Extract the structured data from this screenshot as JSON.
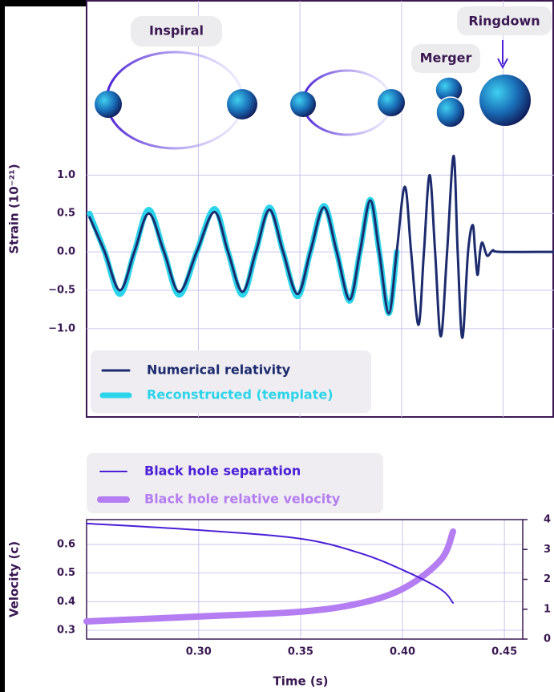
{
  "chart_data": [
    {
      "type": "line",
      "ylabel": "Strain (10⁻²¹)",
      "annotations": [
        "Inspiral",
        "Merger",
        "Ringdown"
      ],
      "xlim": [
        0.245,
        0.475
      ],
      "ylim": [
        -2.15,
        3.27
      ],
      "xticks": [
        0.3,
        0.35,
        0.4,
        0.45
      ],
      "show_xtick_labels": false,
      "yticks": [
        {
          "value": -1,
          "label": "−1.0"
        },
        {
          "value": -0.5,
          "label": "−0.5"
        },
        {
          "value": 0,
          "label": "0.0"
        },
        {
          "value": 0.5,
          "label": "0.5"
        },
        {
          "value": 1,
          "label": "1.0"
        }
      ],
      "grid": true,
      "smooth": true,
      "x": [
        0.2465,
        0.2539,
        0.2614,
        0.2685,
        0.2756,
        0.2831,
        0.2906,
        0.2992,
        0.3079,
        0.3146,
        0.3217,
        0.3283,
        0.335,
        0.3417,
        0.3488,
        0.3551,
        0.3618,
        0.3681,
        0.3744,
        0.3795,
        0.3846,
        0.389,
        0.3937,
        0.3976,
        0.4016,
        0.4047,
        0.4083,
        0.411,
        0.4138,
        0.4165,
        0.4193,
        0.4224,
        0.4256,
        0.4276,
        0.4299,
        0.4327,
        0.435,
        0.4362,
        0.4374,
        0.4386,
        0.4398,
        0.4421,
        0.4449,
        0.4484,
        0.4744
      ],
      "series": [
        {
          "name": "Numerical relativity",
          "color": "#1c2b6e",
          "width": 3,
          "values": [
            0.45,
            0,
            -0.5,
            0,
            0.5,
            0,
            -0.52,
            0,
            0.52,
            0,
            -0.52,
            0,
            0.55,
            0,
            -0.55,
            0,
            0.58,
            0,
            -0.62,
            0,
            0.67,
            0,
            -0.8,
            0,
            0.85,
            0,
            -0.95,
            0,
            1.0,
            0,
            -1.1,
            0,
            1.25,
            0,
            -1.12,
            0,
            0.35,
            0,
            -0.3,
            0,
            0.12,
            -0.05,
            0.02,
            0,
            0
          ]
        },
        {
          "name": "Reconstructed (template)",
          "color": "#2ad4ea",
          "width": 7,
          "values": [
            0.5,
            0,
            -0.55,
            0,
            0.55,
            0,
            -0.56,
            0,
            0.56,
            0,
            -0.56,
            0,
            0.58,
            0,
            -0.58,
            0,
            0.6,
            0,
            -0.64,
            0,
            0.68,
            0,
            -0.8,
            0,
            null,
            null,
            null,
            null,
            null,
            null,
            null,
            null,
            null,
            null,
            null,
            null,
            null,
            null,
            null,
            null,
            null,
            null,
            null,
            null,
            null
          ]
        }
      ]
    },
    {
      "type": "line",
      "xlabel": "Time (s)",
      "ylabel": "Velocity (c)",
      "xlim": [
        0.245,
        0.459
      ],
      "ylim": [
        0.2692,
        0.6868
      ],
      "y2lim": [
        0,
        4
      ],
      "xticks": [
        {
          "value": 0.3,
          "label": "0.30"
        },
        0.35,
        {
          "value": 0.4,
          "label": "0.40"
        },
        0.45
      ],
      "yticks": [
        0.3,
        0.4,
        0.5,
        0.6
      ],
      "y2ticks": [
        0,
        1,
        2,
        3,
        4
      ],
      "grid": true,
      "smooth": true,
      "x": [
        0.245,
        0.3,
        0.35,
        0.3795,
        0.4012,
        0.4189,
        0.4248
      ],
      "series": [
        {
          "name": "Black hole separation",
          "color": "#4a1fd6",
          "width": 2,
          "axis": "y2",
          "values": [
            3.87,
            3.65,
            3.36,
            2.87,
            2.28,
            1.66,
            1.21
          ]
        },
        {
          "name": "Black hole relative velocity",
          "color": "#b47df2",
          "width": 8,
          "values": [
            0.331,
            0.348,
            0.365,
            0.395,
            0.449,
            0.547,
            0.645
          ]
        }
      ]
    }
  ]
}
